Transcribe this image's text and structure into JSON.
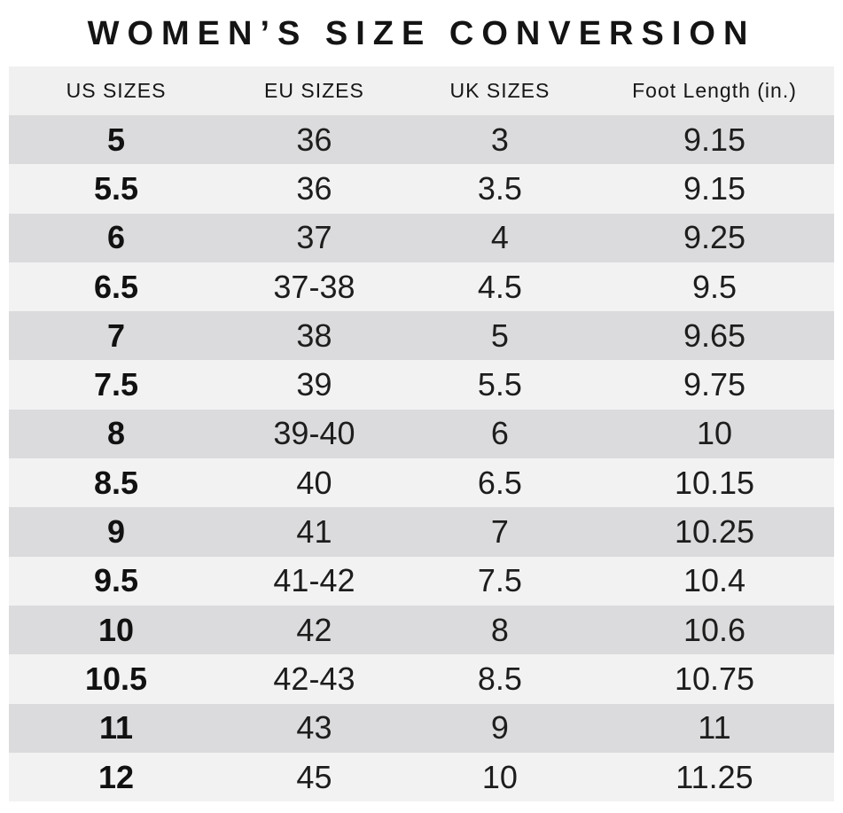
{
  "title": "WOMEN’S SIZE CONVERSION",
  "chart_data": {
    "type": "table",
    "title": "WOMEN’S SIZE CONVERSION",
    "columns": [
      "US SIZES",
      "EU SIZES",
      "UK SIZES",
      "Foot Length (in.)"
    ],
    "rows": [
      [
        "5",
        "36",
        "3",
        "9.15"
      ],
      [
        "5.5",
        "36",
        "3.5",
        "9.15"
      ],
      [
        "6",
        "37",
        "4",
        "9.25"
      ],
      [
        "6.5",
        "37-38",
        "4.5",
        "9.5"
      ],
      [
        "7",
        "38",
        "5",
        "9.65"
      ],
      [
        "7.5",
        "39",
        "5.5",
        "9.75"
      ],
      [
        "8",
        "39-40",
        "6",
        "10"
      ],
      [
        "8.5",
        "40",
        "6.5",
        "10.15"
      ],
      [
        "9",
        "41",
        "7",
        "10.25"
      ],
      [
        "9.5",
        "41-42",
        "7.5",
        "10.4"
      ],
      [
        "10",
        "42",
        "8",
        "10.6"
      ],
      [
        "10.5",
        "42-43",
        "8.5",
        "10.75"
      ],
      [
        "11",
        "43",
        "9",
        "11"
      ],
      [
        "12",
        "45",
        "10",
        "11.25"
      ]
    ],
    "layout": {
      "striped": true,
      "first_data_row_shade": "dark",
      "bold_column": "US SIZES"
    }
  },
  "colors": {
    "page_bg": "#ffffff",
    "header_bg": "#f0f0f1",
    "row_dark": "#dbdbdd",
    "row_light": "#f2f2f3",
    "text": "#1d1d1d"
  }
}
